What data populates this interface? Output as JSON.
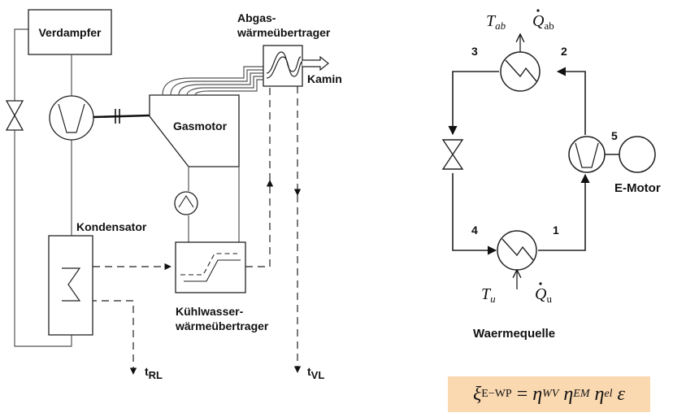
{
  "left_diagram": {
    "evaporator": "Verdampfer",
    "exhaust_hx_line1": "Abgas-",
    "exhaust_hx_line2": "wärmeübertrager",
    "chimney": "Kamin",
    "gas_engine": "Gasmotor",
    "condenser": "Kondensator",
    "coolant_hx_line1": "Kühlwasser-",
    "coolant_hx_line2": "wärmeübertrager",
    "return_temp": {
      "main": "t",
      "sub": "RL"
    },
    "supply_temp": {
      "main": "t",
      "sub": "VL"
    }
  },
  "right_diagram": {
    "state_1": "1",
    "state_2": "2",
    "state_3": "3",
    "state_4": "4",
    "state_5": "5",
    "t_ab": {
      "main": "T",
      "sub": "ab"
    },
    "q_ab": {
      "main": "Q",
      "sub": "ab"
    },
    "t_u": {
      "main": "T",
      "sub": "u"
    },
    "q_u": {
      "main": "Q",
      "sub": "u"
    },
    "e_motor": "E-Motor",
    "heat_source": "Waermequelle"
  },
  "formula": {
    "xi": "ξ",
    "xi_sub": "E−WP",
    "equals": "=",
    "eta": "η",
    "eta_wv_sub": "WV",
    "eta_em_sub": "EM",
    "eta_el_sub": "el",
    "epsilon": "ε",
    "box_color": "#fbd9b0"
  }
}
